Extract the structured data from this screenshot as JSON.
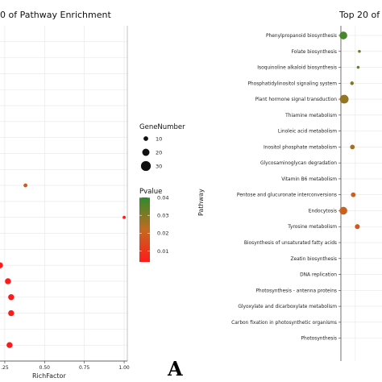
{
  "chart_data": [
    {
      "type": "scatter",
      "title": "0 of Pathway Enrichment",
      "xlabel": "RichFactor",
      "ylabel": "",
      "xlim": [
        0.22,
        1.02
      ],
      "x_ticks": [
        ".25",
        "0.50",
        "0.75",
        "1.00"
      ],
      "x_tick_values": [
        0.25,
        0.5,
        0.75,
        1.0
      ],
      "grid": true,
      "points": [
        {
          "row": 10,
          "x": 0.38,
          "gene_number": 7,
          "pvalue": 0.018
        },
        {
          "row": 12,
          "x": 1.0,
          "gene_number": 4,
          "pvalue": 0.005
        },
        {
          "row": 15,
          "x": 0.22,
          "gene_number": 15,
          "pvalue": 0.004
        },
        {
          "row": 16,
          "x": 0.27,
          "gene_number": 15,
          "pvalue": 0.004
        },
        {
          "row": 17,
          "x": 0.29,
          "gene_number": 15,
          "pvalue": 0.004
        },
        {
          "row": 18,
          "x": 0.29,
          "gene_number": 15,
          "pvalue": 0.004
        },
        {
          "row": 20,
          "x": 0.28,
          "gene_number": 15,
          "pvalue": 0.004
        }
      ]
    },
    {
      "type": "scatter",
      "title": "Top 20 of",
      "ylabel": "Pathway",
      "xlabel": "",
      "grid": true,
      "categories": [
        "Phenylpropanoid biosynthesis",
        "Folate biosynthesis",
        "Isoquinoline alkaloid biosynthesis",
        "Phosphatidylinositol signaling system",
        "Plant hormone signal transduction",
        "Thiamine metabolism",
        "Linoleic acid metabolism",
        "Inositol phosphate metabolism",
        "Glycosaminoglycan degradation",
        "Vitamin B6 metabolism",
        "Pentose and glucuronate interconversions",
        "Endocytosis",
        "Tyrosine metabolism",
        "Biosynthesis of unsaturated fatty acids",
        "Zeatin biosynthesis",
        "DNA replication",
        "Photosynthesis - antenna proteins",
        "Glyoxylate and dicarboxylate metabolism",
        "Carbon fixation in photosynthetic organisms",
        "Photosynthesis"
      ],
      "points": [
        {
          "category": 0,
          "x": 0.06,
          "gene_number": 22,
          "pvalue": 0.037
        },
        {
          "category": 1,
          "x": 0.45,
          "gene_number": 3,
          "pvalue": 0.034
        },
        {
          "category": 2,
          "x": 0.42,
          "gene_number": 3,
          "pvalue": 0.034
        },
        {
          "category": 3,
          "x": 0.27,
          "gene_number": 6,
          "pvalue": 0.03
        },
        {
          "category": 4,
          "x": 0.08,
          "gene_number": 26,
          "pvalue": 0.028
        },
        {
          "category": 7,
          "x": 0.28,
          "gene_number": 10,
          "pvalue": 0.026
        },
        {
          "category": 10,
          "x": 0.3,
          "gene_number": 10,
          "pvalue": 0.02
        },
        {
          "category": 11,
          "x": 0.06,
          "gene_number": 22,
          "pvalue": 0.02
        },
        {
          "category": 12,
          "x": 0.4,
          "gene_number": 11,
          "pvalue": 0.018
        }
      ]
    }
  ],
  "legend_size": {
    "title": "GeneNumber",
    "items": [
      {
        "label": "10",
        "value": 10
      },
      {
        "label": "20",
        "value": 20
      },
      {
        "label": "30",
        "value": 30
      }
    ]
  },
  "legend_color": {
    "title": "Pvalue",
    "range": [
      0.004,
      0.04
    ],
    "ticks": [
      "0.04",
      "0.03",
      "0.02",
      "0.01"
    ],
    "tick_values": [
      0.04,
      0.03,
      0.02,
      0.01
    ],
    "low_color": "#ff1a1a",
    "mid_color": "#c46a20",
    "high_color": "#2e8b2e"
  },
  "panel_label": "A",
  "colors": {
    "grid": "#e6e6e6",
    "axis": "#333333"
  }
}
